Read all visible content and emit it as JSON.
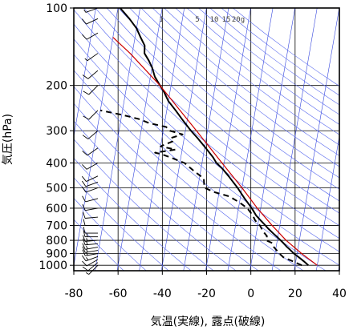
{
  "chart_data": {
    "type": "line",
    "title": "",
    "xlabel": "気温(実線), 露点(破線)",
    "ylabel": "気圧(hPa)",
    "xlim": [
      -80,
      40
    ],
    "ylim": [
      1050,
      100
    ],
    "yscale": "log",
    "x_ticks": [
      "-80",
      "-60",
      "-40",
      "-20",
      "0",
      "20",
      "40"
    ],
    "y_ticks": [
      "100",
      "200",
      "300",
      "400",
      "500",
      "600",
      "700",
      "800",
      "900",
      "1000"
    ],
    "y_tick_values": [
      100,
      200,
      300,
      400,
      500,
      600,
      700,
      800,
      900,
      1000
    ],
    "mixing_ratio_labels": [
      "1",
      "5",
      "10",
      "15",
      "20g"
    ],
    "grid": true,
    "series": [
      {
        "role": "temperature",
        "line_style": "solid",
        "color": "#000000",
        "points": [
          [
            1000,
            26.0
          ],
          [
            970,
            24.0
          ],
          [
            930,
            21.0
          ],
          [
            900,
            18.5
          ],
          [
            870,
            16.5
          ],
          [
            850,
            15.0
          ],
          [
            820,
            13.0
          ],
          [
            780,
            10.0
          ],
          [
            750,
            7.5
          ],
          [
            720,
            5.0
          ],
          [
            700,
            3.5
          ],
          [
            670,
            1.0
          ],
          [
            640,
            -1.5
          ],
          [
            600,
            -4.0
          ],
          [
            550,
            -8.0
          ],
          [
            500,
            -12.0
          ],
          [
            450,
            -17.0
          ],
          [
            420,
            -20.5
          ],
          [
            400,
            -23.5
          ],
          [
            380,
            -25.5
          ],
          [
            350,
            -29.5
          ],
          [
            320,
            -34.0
          ],
          [
            300,
            -37.5
          ],
          [
            270,
            -42.5
          ],
          [
            250,
            -46.0
          ],
          [
            230,
            -50.0
          ],
          [
            210,
            -53.0
          ],
          [
            200,
            -55.0
          ],
          [
            185,
            -58.0
          ],
          [
            170,
            -60.0
          ],
          [
            160,
            -62.0
          ],
          [
            150,
            -64.5
          ],
          [
            140,
            -65.0
          ],
          [
            130,
            -67.5
          ],
          [
            120,
            -70.0
          ],
          [
            110,
            -74.0
          ],
          [
            100,
            -79.0
          ]
        ]
      },
      {
        "role": "dewpoint",
        "line_style": "dashed",
        "color": "#000000",
        "points": [
          [
            1000,
            23.0
          ],
          [
            960,
            18.0
          ],
          [
            930,
            14.0
          ],
          [
            900,
            12.0
          ],
          [
            850,
            9.0
          ],
          [
            820,
            8.0
          ],
          [
            800,
            5.0
          ],
          [
            770,
            5.0
          ],
          [
            740,
            3.0
          ],
          [
            700,
            1.0
          ],
          [
            670,
            -1.5
          ],
          [
            640,
            -3.0
          ],
          [
            600,
            -6.0
          ],
          [
            570,
            -10.0
          ],
          [
            540,
            -15.0
          ],
          [
            520,
            -22.0
          ],
          [
            500,
            -27.0
          ],
          [
            460,
            -28.0
          ],
          [
            430,
            -33.0
          ],
          [
            400,
            -38.0
          ],
          [
            380,
            -45.0
          ],
          [
            370,
            -49.0
          ],
          [
            365,
            -52.0
          ],
          [
            355,
            -43.0
          ],
          [
            345,
            -50.0
          ],
          [
            330,
            -45.0
          ],
          [
            320,
            -46.0
          ],
          [
            310,
            -41.0
          ],
          [
            300,
            -47.0
          ],
          [
            290,
            -49.0
          ],
          [
            280,
            -57.0
          ],
          [
            270,
            -62.0
          ],
          [
            260,
            -70.0
          ],
          [
            250,
            -80.0
          ]
        ]
      },
      {
        "role": "parcel",
        "line_style": "solid",
        "color": "#cc0000",
        "points": [
          [
            1000,
            30.0
          ],
          [
            900,
            22.0
          ],
          [
            800,
            14.0
          ],
          [
            700,
            6.5
          ],
          [
            600,
            -1.5
          ],
          [
            500,
            -10.0
          ],
          [
            400,
            -21.0
          ],
          [
            300,
            -35.0
          ],
          [
            250,
            -44.0
          ],
          [
            200,
            -55.0
          ],
          [
            150,
            -71.0
          ],
          [
            130,
            -80.0
          ]
        ]
      }
    ],
    "wind_barbs": [
      {
        "pressure": 1000,
        "direction": 225,
        "speed_kt": 5
      },
      {
        "pressure": 975,
        "direction": 230,
        "speed_kt": 10
      },
      {
        "pressure": 950,
        "direction": 240,
        "speed_kt": 10
      },
      {
        "pressure": 925,
        "direction": 250,
        "speed_kt": 15
      },
      {
        "pressure": 900,
        "direction": 260,
        "speed_kt": 15
      },
      {
        "pressure": 875,
        "direction": 260,
        "speed_kt": 15
      },
      {
        "pressure": 850,
        "direction": 260,
        "speed_kt": 15
      },
      {
        "pressure": 825,
        "direction": 265,
        "speed_kt": 15
      },
      {
        "pressure": 800,
        "direction": 265,
        "speed_kt": 15
      },
      {
        "pressure": 775,
        "direction": 270,
        "speed_kt": 15
      },
      {
        "pressure": 750,
        "direction": 270,
        "speed_kt": 10
      },
      {
        "pressure": 700,
        "direction": 270,
        "speed_kt": 10
      },
      {
        "pressure": 650,
        "direction": 265,
        "speed_kt": 10
      },
      {
        "pressure": 600,
        "direction": 260,
        "speed_kt": 10
      },
      {
        "pressure": 550,
        "direction": 255,
        "speed_kt": 10
      },
      {
        "pressure": 500,
        "direction": 250,
        "speed_kt": 10
      },
      {
        "pressure": 475,
        "direction": 250,
        "speed_kt": 10
      },
      {
        "pressure": 450,
        "direction": 245,
        "speed_kt": 10
      },
      {
        "pressure": 400,
        "direction": 240,
        "speed_kt": 10
      },
      {
        "pressure": 350,
        "direction": 235,
        "speed_kt": 10
      },
      {
        "pressure": 300,
        "direction": 230,
        "speed_kt": 10
      },
      {
        "pressure": 250,
        "direction": 225,
        "speed_kt": 10
      },
      {
        "pressure": 200,
        "direction": 225,
        "speed_kt": 10
      },
      {
        "pressure": 175,
        "direction": 230,
        "speed_kt": 10
      },
      {
        "pressure": 150,
        "direction": 235,
        "speed_kt": 5
      },
      {
        "pressure": 125,
        "direction": 240,
        "speed_kt": 10
      },
      {
        "pressure": 110,
        "direction": 245,
        "speed_kt": 10
      },
      {
        "pressure": 100,
        "direction": 250,
        "speed_kt": 5
      }
    ],
    "colors": {
      "isotherm_lines": "#3344dd",
      "adiabat_lines": "#5566ee",
      "grid": "#000000",
      "temperature": "#000000",
      "dewpoint": "#000000",
      "parcel": "#cc0000"
    }
  }
}
